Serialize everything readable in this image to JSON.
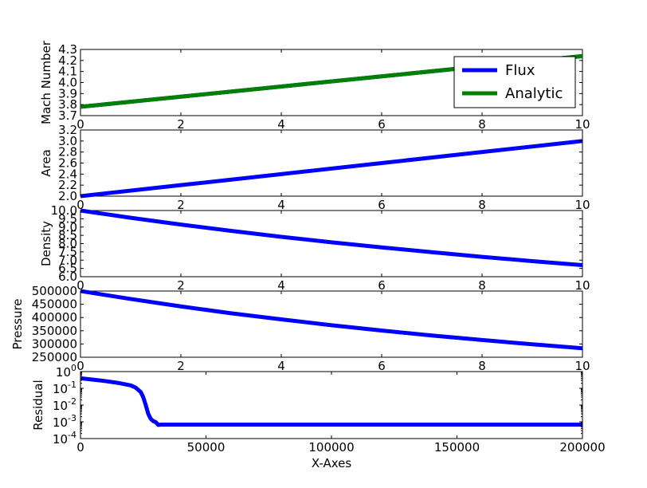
{
  "colors": {
    "flux": "#0000ff",
    "analytic": "#008000",
    "background": "#ffffff",
    "axes": "#000000"
  },
  "chart_data": [
    {
      "type": "line",
      "ylabel": "Mach Number",
      "xlabel": "",
      "xlim": [
        0,
        10
      ],
      "ylim": [
        3.7,
        4.3
      ],
      "xticks": [
        0,
        2,
        4,
        6,
        8,
        10
      ],
      "xtick_labels": [
        "0",
        "2",
        "4",
        "6",
        "8",
        "10"
      ],
      "yticks": [
        3.7,
        3.8,
        3.9,
        4.0,
        4.1,
        4.2,
        4.3
      ],
      "ytick_labels": [
        "3.7",
        "3.8",
        "3.9",
        "4.0",
        "4.1",
        "4.2",
        "4.3"
      ],
      "grid": false,
      "legend": {
        "placement": "upper-right",
        "entries": [
          "Flux",
          "Analytic"
        ]
      },
      "series": [
        {
          "name": "Flux",
          "color": "#0000ff",
          "x": [
            0,
            2,
            4,
            6,
            8,
            10
          ],
          "y": [
            3.78,
            3.872,
            3.964,
            4.056,
            4.148,
            4.24
          ]
        },
        {
          "name": "Analytic",
          "color": "#008000",
          "x": [
            0,
            2,
            4,
            6,
            8,
            10
          ],
          "y": [
            3.78,
            3.872,
            3.964,
            4.056,
            4.148,
            4.24
          ]
        }
      ]
    },
    {
      "type": "line",
      "ylabel": "Area",
      "xlabel": "",
      "xlim": [
        0,
        10
      ],
      "ylim": [
        2.0,
        3.2
      ],
      "xticks": [
        0,
        2,
        4,
        6,
        8,
        10
      ],
      "xtick_labels": [
        "0",
        "2",
        "4",
        "6",
        "8",
        "10"
      ],
      "yticks": [
        2.0,
        2.2,
        2.4,
        2.6,
        2.8,
        3.0,
        3.2
      ],
      "ytick_labels": [
        "2.0",
        "2.2",
        "2.4",
        "2.6",
        "2.8",
        "3.0",
        "3.2"
      ],
      "grid": false,
      "series": [
        {
          "color": "#0000ff",
          "x": [
            0,
            2,
            4,
            6,
            8,
            10
          ],
          "y": [
            2.0,
            2.2,
            2.4,
            2.6,
            2.8,
            3.0
          ]
        }
      ]
    },
    {
      "type": "line",
      "ylabel": "Density",
      "xlabel": "",
      "xlim": [
        0,
        10
      ],
      "ylim": [
        6.0,
        10.0
      ],
      "xticks": [
        0,
        2,
        4,
        6,
        8,
        10
      ],
      "xtick_labels": [
        "0",
        "2",
        "4",
        "6",
        "8",
        "10"
      ],
      "yticks": [
        6.0,
        6.5,
        7.0,
        7.5,
        8.0,
        8.5,
        9.0,
        9.5,
        10.0
      ],
      "ytick_labels": [
        "6.0",
        "6.5",
        "7.0",
        "7.5",
        "8.0",
        "8.5",
        "9.0",
        "9.5",
        "10.0"
      ],
      "grid": false,
      "series": [
        {
          "color": "#0000ff",
          "x": [
            0,
            1,
            2,
            3,
            4,
            5,
            6,
            7,
            8,
            9,
            10
          ],
          "y": [
            10.0,
            9.56,
            9.15,
            8.77,
            8.41,
            8.08,
            7.77,
            7.48,
            7.2,
            6.94,
            6.7
          ]
        }
      ]
    },
    {
      "type": "line",
      "ylabel": "Pressure",
      "xlabel": "",
      "xlim": [
        0,
        10
      ],
      "ylim": [
        250000,
        500000
      ],
      "xticks": [
        0,
        2,
        4,
        6,
        8,
        10
      ],
      "xtick_labels": [
        "0",
        "2",
        "4",
        "6",
        "8",
        "10"
      ],
      "yticks": [
        250000,
        300000,
        350000,
        400000,
        450000,
        500000
      ],
      "ytick_labels": [
        "250000",
        "300000",
        "350000",
        "400000",
        "450000",
        "500000"
      ],
      "grid": false,
      "series": [
        {
          "color": "#0000ff",
          "x": [
            0,
            1,
            2,
            3,
            4,
            5,
            6,
            7,
            8,
            9,
            10
          ],
          "y": [
            500000,
            470000,
            442000,
            416000,
            393000,
            371000,
            351000,
            332000,
            315000,
            299000,
            284000
          ]
        }
      ]
    },
    {
      "type": "line",
      "ylabel": "Residual",
      "xlabel": "X-Axes",
      "xlim": [
        0,
        200000
      ],
      "ylim": [
        0.0001,
        1
      ],
      "yscale": "log",
      "xticks": [
        0,
        50000,
        100000,
        150000,
        200000
      ],
      "xtick_labels": [
        "0",
        "50000",
        "100000",
        "150000",
        "200000"
      ],
      "yticks": [
        0.0001,
        0.001,
        0.01,
        0.1,
        1
      ],
      "ytick_labels": [
        {
          "base": "10",
          "exp": "-4"
        },
        {
          "base": "10",
          "exp": "-3"
        },
        {
          "base": "10",
          "exp": "-2"
        },
        {
          "base": "10",
          "exp": "-1"
        },
        {
          "base": "10",
          "exp": "0"
        }
      ],
      "grid": false,
      "series": [
        {
          "color": "#0000ff",
          "x": [
            0,
            5000,
            10000,
            15000,
            20000,
            22000,
            24000,
            25000,
            26000,
            27000,
            28000,
            29000,
            30000,
            31000,
            32000,
            34000,
            50000,
            100000,
            150000,
            200000
          ],
          "y": [
            0.4,
            0.33,
            0.27,
            0.21,
            0.15,
            0.11,
            0.06,
            0.03,
            0.01,
            0.003,
            0.0015,
            0.0011,
            0.00095,
            0.00065,
            0.00068,
            0.00068,
            0.00068,
            0.00068,
            0.00068,
            0.00068
          ]
        }
      ]
    }
  ]
}
